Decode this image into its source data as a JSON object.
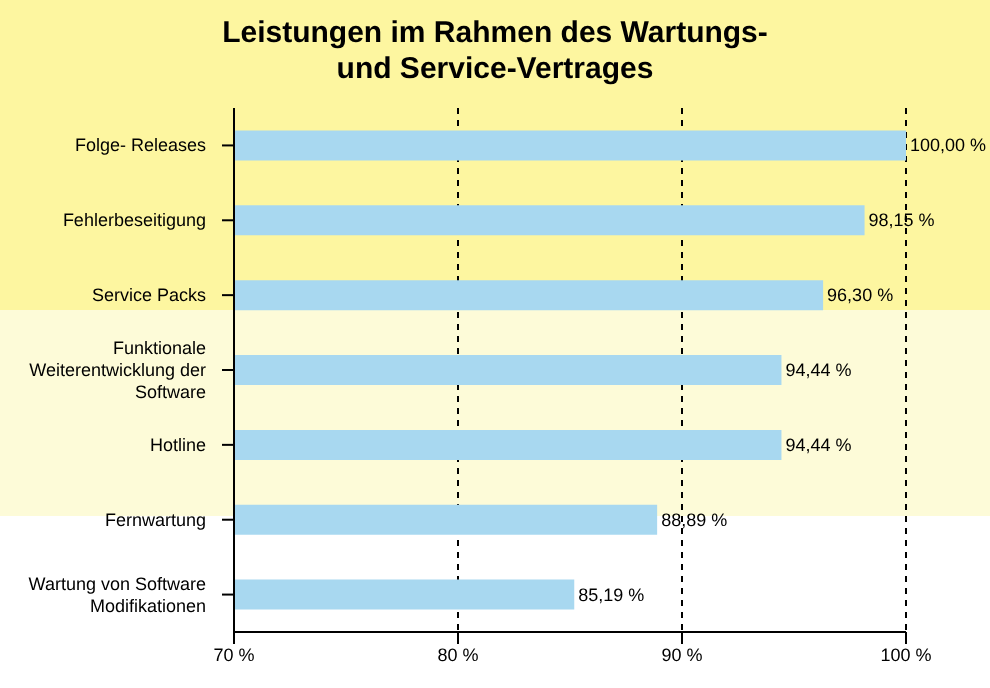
{
  "chart_data": {
    "type": "bar",
    "orientation": "horizontal",
    "title": "Leistungen im Rahmen des Wartungs- und Service-Vertrages",
    "categories": [
      "Folge- Releases",
      "Fehlerbeseitigung",
      "Service Packs",
      "Funktionale Weiterentwicklung der Software",
      "Hotline",
      "Fernwartung",
      "Wartung von Software Modifikationen"
    ],
    "values": [
      100,
      98.15,
      96.3,
      94.44,
      94.44,
      88.89,
      85.19
    ],
    "value_labels": [
      "100,00 %",
      "98,15 %",
      "96,30 %",
      "94,44 %",
      "94,44 %",
      "88,89 %",
      "85,19 %"
    ],
    "color": "#a8d8f0",
    "xlim": [
      70,
      100
    ],
    "xticks": [
      {
        "value": 70,
        "label": "70 %"
      },
      {
        "value": 80,
        "label": "80 %"
      },
      {
        "value": 90,
        "label": "90 %"
      },
      {
        "value": 100,
        "label": "100 %"
      }
    ],
    "grid": "x"
  }
}
